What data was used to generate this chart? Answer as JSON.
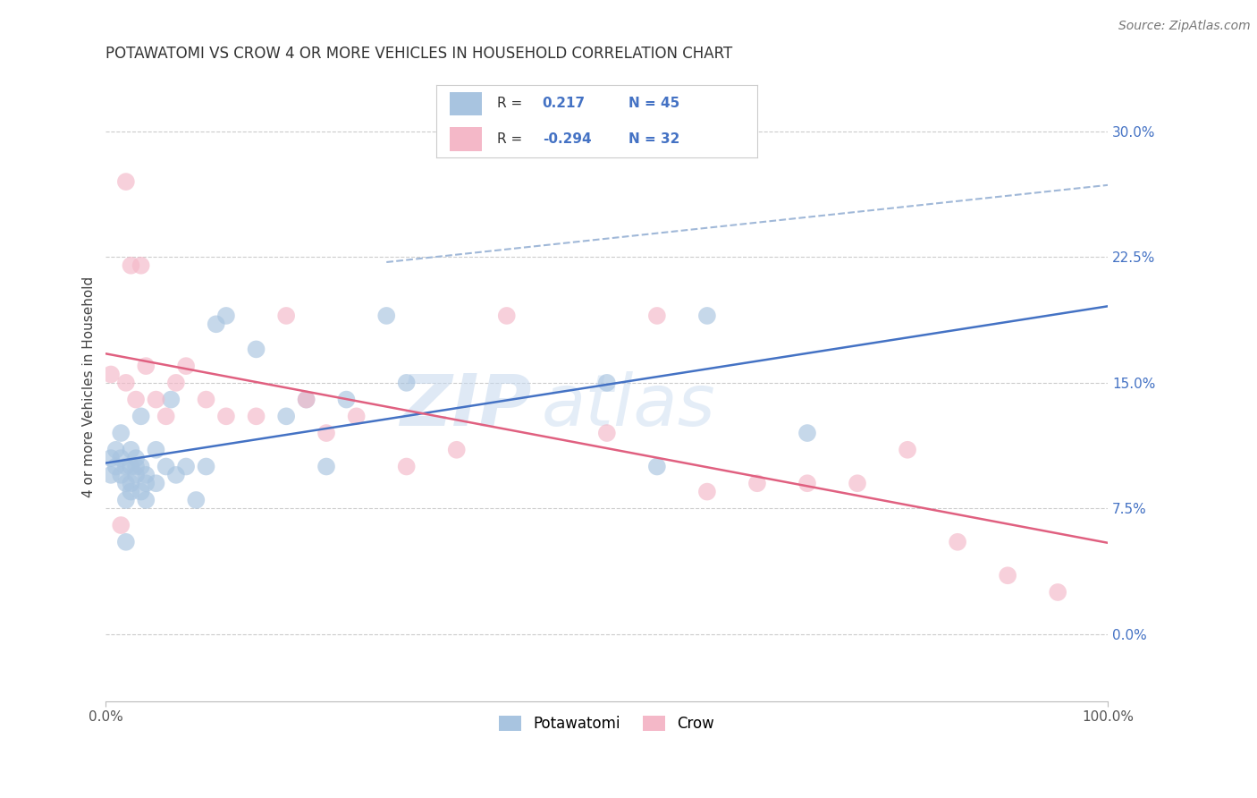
{
  "title": "POTAWATOMI VS CROW 4 OR MORE VEHICLES IN HOUSEHOLD CORRELATION CHART",
  "source": "Source: ZipAtlas.com",
  "ylabel": "4 or more Vehicles in Household",
  "xlim": [
    0.0,
    1.0
  ],
  "ylim": [
    -0.04,
    0.335
  ],
  "yticks": [
    0.0,
    0.075,
    0.15,
    0.225,
    0.3
  ],
  "ytick_labels": [
    "0.0%",
    "7.5%",
    "15.0%",
    "22.5%",
    "30.0%"
  ],
  "xticks": [
    0.0,
    1.0
  ],
  "xtick_labels": [
    "0.0%",
    "100.0%"
  ],
  "blue_color": "#a8c4e0",
  "pink_color": "#f4b8c8",
  "blue_line_color": "#4472c4",
  "pink_line_color": "#e06080",
  "dash_line_color": "#a0b8d8",
  "potawatomi_x": [
    0.005,
    0.005,
    0.01,
    0.01,
    0.015,
    0.015,
    0.015,
    0.02,
    0.02,
    0.02,
    0.025,
    0.025,
    0.025,
    0.025,
    0.03,
    0.03,
    0.03,
    0.035,
    0.035,
    0.035,
    0.04,
    0.04,
    0.04,
    0.05,
    0.05,
    0.06,
    0.065,
    0.07,
    0.08,
    0.09,
    0.1,
    0.11,
    0.12,
    0.15,
    0.18,
    0.2,
    0.22,
    0.24,
    0.28,
    0.3,
    0.5,
    0.55,
    0.6,
    0.7,
    0.02
  ],
  "potawatomi_y": [
    0.095,
    0.105,
    0.1,
    0.11,
    0.095,
    0.105,
    0.12,
    0.08,
    0.09,
    0.1,
    0.1,
    0.11,
    0.085,
    0.09,
    0.095,
    0.105,
    0.1,
    0.085,
    0.1,
    0.13,
    0.08,
    0.095,
    0.09,
    0.11,
    0.09,
    0.1,
    0.14,
    0.095,
    0.1,
    0.08,
    0.1,
    0.185,
    0.19,
    0.17,
    0.13,
    0.14,
    0.1,
    0.14,
    0.19,
    0.15,
    0.15,
    0.1,
    0.19,
    0.12,
    0.055
  ],
  "crow_x": [
    0.005,
    0.02,
    0.025,
    0.03,
    0.035,
    0.04,
    0.05,
    0.06,
    0.07,
    0.08,
    0.1,
    0.12,
    0.15,
    0.18,
    0.2,
    0.22,
    0.25,
    0.3,
    0.35,
    0.4,
    0.5,
    0.55,
    0.6,
    0.65,
    0.7,
    0.75,
    0.8,
    0.85,
    0.9,
    0.95,
    0.015,
    0.02
  ],
  "crow_y": [
    0.155,
    0.27,
    0.22,
    0.14,
    0.22,
    0.16,
    0.14,
    0.13,
    0.15,
    0.16,
    0.14,
    0.13,
    0.13,
    0.19,
    0.14,
    0.12,
    0.13,
    0.1,
    0.11,
    0.19,
    0.12,
    0.19,
    0.085,
    0.09,
    0.09,
    0.09,
    0.11,
    0.055,
    0.035,
    0.025,
    0.065,
    0.15
  ],
  "background_color": "#ffffff",
  "grid_color": "#cccccc"
}
